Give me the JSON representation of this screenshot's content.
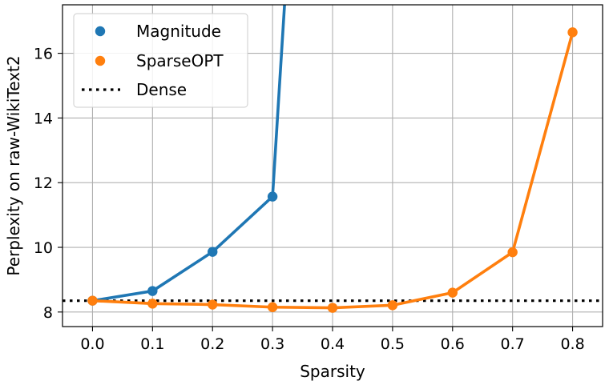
{
  "chart_data": {
    "type": "line",
    "xlabel": "Sparsity",
    "ylabel": "Perplexity on raw-WikiText2",
    "xlim": [
      -0.05,
      0.85
    ],
    "ylim": [
      7.55,
      17.5
    ],
    "xticks": [
      "0.0",
      "0.1",
      "0.2",
      "0.3",
      "0.4",
      "0.5",
      "0.6",
      "0.7",
      "0.8"
    ],
    "yticks": [
      "8",
      "10",
      "12",
      "14",
      "16"
    ],
    "grid": true,
    "legend_position": "top-left",
    "series": [
      {
        "name": "Magnitude",
        "color": "#1f77b4",
        "x": [
          0.0,
          0.1,
          0.2,
          0.3,
          0.32
        ],
        "y": [
          8.35,
          8.65,
          9.86,
          11.57,
          17.5
        ],
        "markers": [
          true,
          true,
          true,
          true,
          false
        ]
      },
      {
        "name": "SparseOPT",
        "color": "#ff7f0e",
        "x": [
          0.0,
          0.1,
          0.2,
          0.3,
          0.4,
          0.5,
          0.6,
          0.7,
          0.8
        ],
        "y": [
          8.35,
          8.26,
          8.23,
          8.15,
          8.13,
          8.21,
          8.6,
          9.85,
          16.65
        ],
        "markers": [
          true,
          true,
          true,
          true,
          true,
          true,
          true,
          true,
          true
        ]
      },
      {
        "name": "Dense",
        "color": "#000000",
        "style": "dotted",
        "hline": 8.35
      }
    ]
  }
}
